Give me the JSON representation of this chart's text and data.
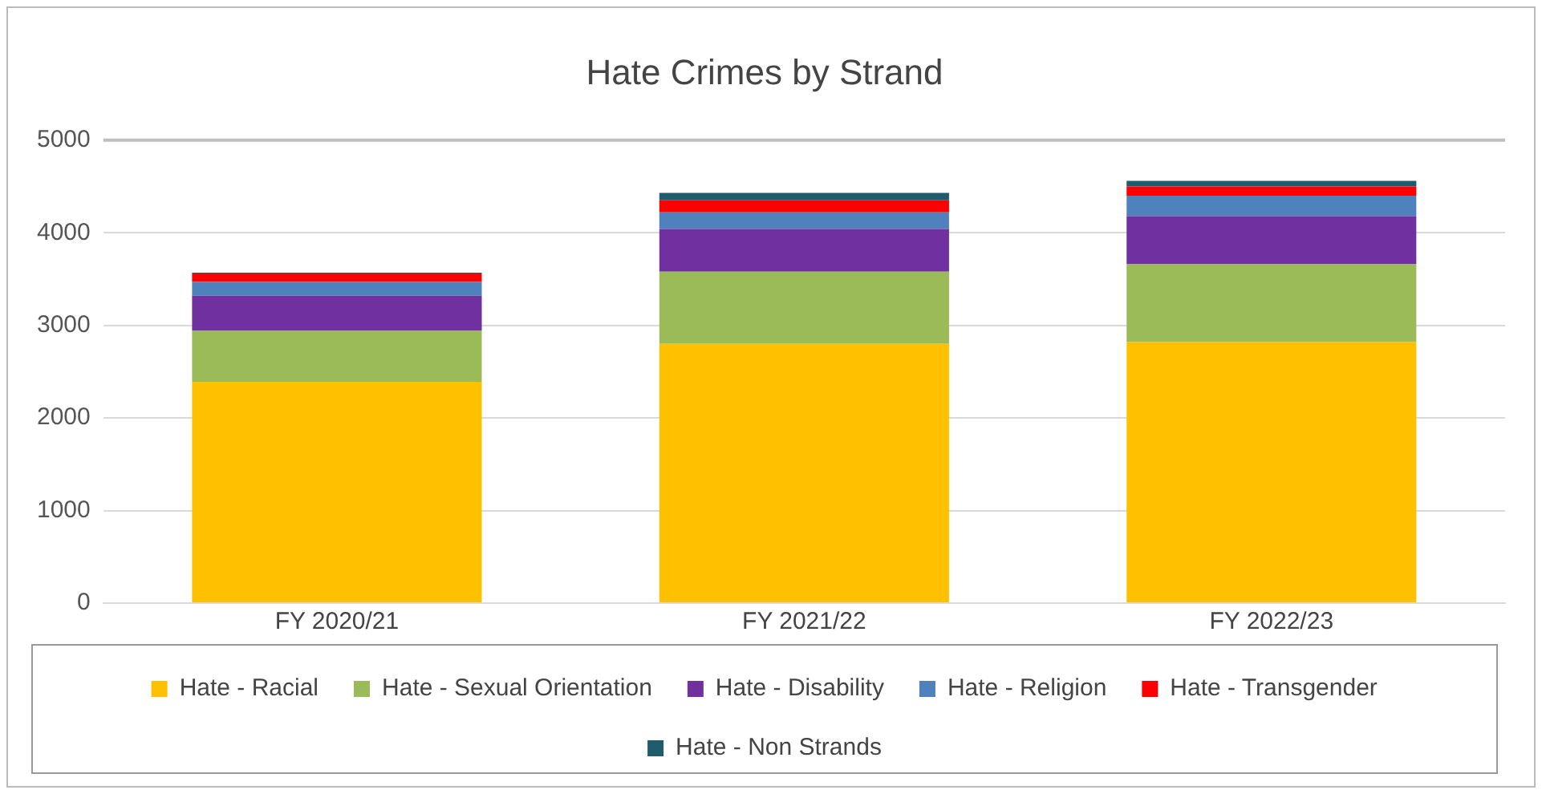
{
  "chart_data": {
    "type": "bar",
    "title": "Hate Crimes by Strand",
    "categories": [
      "FY 2020/21",
      "FY 2021/22",
      "FY 2022/23"
    ],
    "stacked": true,
    "series": [
      {
        "name": "Hate - Racial",
        "color": "#ffc000",
        "values": [
          2390,
          2800,
          2820
        ]
      },
      {
        "name": "Hate - Sexual Orientation",
        "color": "#9bbb59",
        "values": [
          550,
          780,
          840
        ]
      },
      {
        "name": "Hate - Disability",
        "color": "#7030a0",
        "values": [
          380,
          460,
          520
        ]
      },
      {
        "name": "Hate - Religion",
        "color": "#4f81bd",
        "values": [
          150,
          180,
          220
        ]
      },
      {
        "name": "Hate - Transgender",
        "color": "#ff0000",
        "values": [
          90,
          130,
          100
        ]
      },
      {
        "name": "Hate - Non Strands",
        "color": "#1f5c6e",
        "values": [
          10,
          80,
          60
        ]
      }
    ],
    "ylim": [
      0,
      5000
    ],
    "yticks": [
      0,
      1000,
      2000,
      3000,
      4000,
      5000
    ],
    "grid": "y",
    "legend": "bottom"
  }
}
